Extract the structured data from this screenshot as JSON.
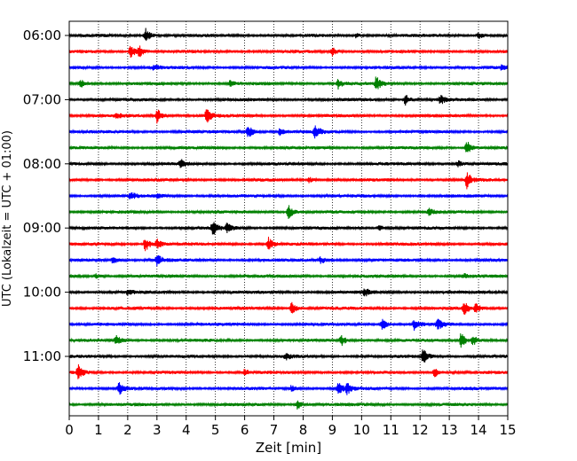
{
  "chart_data": {
    "type": "line",
    "xlabel": "Zeit  [min]",
    "ylabel": "UTC (Lokalzeit = UTC + 01:00)",
    "xlim": [
      0,
      15
    ],
    "x_ticks": [
      0,
      1,
      2,
      3,
      4,
      5,
      6,
      7,
      8,
      9,
      10,
      11,
      12,
      13,
      14,
      15
    ],
    "y_tick_labels": [
      "06:00",
      "07:00",
      "08:00",
      "09:00",
      "10:00",
      "11:00"
    ],
    "trace_interval_min": 15,
    "grid": {
      "vertical": true,
      "style": "dotted"
    },
    "colors": [
      "#000000",
      "#ff0000",
      "#0000ff",
      "#008000"
    ],
    "series": [
      {
        "start": "06:00",
        "color": "#000000",
        "events": [
          {
            "t": 2.6,
            "amp": 1.0
          },
          {
            "t": 9.8,
            "amp": 0.35
          },
          {
            "t": 14.0,
            "amp": 0.4
          }
        ]
      },
      {
        "start": "06:15",
        "color": "#ff0000",
        "events": [
          {
            "t": 2.1,
            "amp": 1.0
          },
          {
            "t": 2.4,
            "amp": 0.6
          },
          {
            "t": 9.0,
            "amp": 0.5
          }
        ]
      },
      {
        "start": "06:30",
        "color": "#0000ff",
        "events": [
          {
            "t": 2.9,
            "amp": 0.35
          },
          {
            "t": 14.8,
            "amp": 0.35
          }
        ]
      },
      {
        "start": "06:45",
        "color": "#008000",
        "events": [
          {
            "t": 0.4,
            "amp": 0.45
          },
          {
            "t": 5.5,
            "amp": 0.35
          },
          {
            "t": 9.2,
            "amp": 0.6
          },
          {
            "t": 10.5,
            "amp": 0.9
          }
        ]
      },
      {
        "start": "07:00",
        "color": "#000000",
        "events": [
          {
            "t": 11.5,
            "amp": 0.7
          },
          {
            "t": 12.7,
            "amp": 0.6
          }
        ]
      },
      {
        "start": "07:15",
        "color": "#ff0000",
        "events": [
          {
            "t": 1.6,
            "amp": 0.35
          },
          {
            "t": 3.0,
            "amp": 1.0
          },
          {
            "t": 4.7,
            "amp": 0.9
          }
        ]
      },
      {
        "start": "07:30",
        "color": "#0000ff",
        "events": [
          {
            "t": 6.1,
            "amp": 1.0
          },
          {
            "t": 7.2,
            "amp": 0.4
          },
          {
            "t": 8.4,
            "amp": 0.9
          }
        ]
      },
      {
        "start": "07:45",
        "color": "#008000",
        "events": [
          {
            "t": 13.6,
            "amp": 0.9
          }
        ]
      },
      {
        "start": "08:00",
        "color": "#000000",
        "events": [
          {
            "t": 3.8,
            "amp": 0.6
          },
          {
            "t": 13.3,
            "amp": 0.4
          }
        ]
      },
      {
        "start": "08:15",
        "color": "#ff0000",
        "events": [
          {
            "t": 8.2,
            "amp": 0.35
          },
          {
            "t": 13.6,
            "amp": 1.0
          }
        ]
      },
      {
        "start": "08:30",
        "color": "#0000ff",
        "events": [
          {
            "t": 2.1,
            "amp": 0.45
          },
          {
            "t": 3.0,
            "amp": 0.3
          }
        ]
      },
      {
        "start": "08:45",
        "color": "#008000",
        "events": [
          {
            "t": 7.5,
            "amp": 0.9
          },
          {
            "t": 12.3,
            "amp": 0.4
          }
        ]
      },
      {
        "start": "09:00",
        "color": "#000000",
        "events": [
          {
            "t": 4.9,
            "amp": 1.0
          },
          {
            "t": 5.4,
            "amp": 0.6
          },
          {
            "t": 10.6,
            "amp": 0.35
          }
        ]
      },
      {
        "start": "09:15",
        "color": "#ff0000",
        "events": [
          {
            "t": 2.6,
            "amp": 1.0
          },
          {
            "t": 3.0,
            "amp": 0.6
          },
          {
            "t": 6.8,
            "amp": 0.9
          }
        ]
      },
      {
        "start": "09:30",
        "color": "#0000ff",
        "events": [
          {
            "t": 1.5,
            "amp": 0.5
          },
          {
            "t": 3.0,
            "amp": 0.8
          },
          {
            "t": 8.6,
            "amp": 0.5
          }
        ]
      },
      {
        "start": "09:45",
        "color": "#008000",
        "events": [
          {
            "t": 0.9,
            "amp": 0.3
          },
          {
            "t": 13.5,
            "amp": 0.3
          }
        ]
      },
      {
        "start": "10:00",
        "color": "#000000",
        "events": [
          {
            "t": 2.0,
            "amp": 0.35
          },
          {
            "t": 10.1,
            "amp": 0.5
          }
        ]
      },
      {
        "start": "10:15",
        "color": "#ff0000",
        "events": [
          {
            "t": 7.6,
            "amp": 1.0
          },
          {
            "t": 13.5,
            "amp": 0.9
          },
          {
            "t": 13.9,
            "amp": 0.6
          }
        ]
      },
      {
        "start": "10:30",
        "color": "#0000ff",
        "events": [
          {
            "t": 10.7,
            "amp": 0.8
          },
          {
            "t": 11.8,
            "amp": 0.7
          },
          {
            "t": 12.6,
            "amp": 0.7
          }
        ]
      },
      {
        "start": "10:45",
        "color": "#008000",
        "events": [
          {
            "t": 1.6,
            "amp": 0.7
          },
          {
            "t": 9.3,
            "amp": 0.7
          },
          {
            "t": 13.4,
            "amp": 1.0
          },
          {
            "t": 13.8,
            "amp": 0.7
          }
        ]
      },
      {
        "start": "11:00",
        "color": "#000000",
        "events": [
          {
            "t": 7.4,
            "amp": 0.4
          },
          {
            "t": 12.1,
            "amp": 1.0
          }
        ]
      },
      {
        "start": "11:15",
        "color": "#ff0000",
        "events": [
          {
            "t": 0.3,
            "amp": 1.0
          },
          {
            "t": 6.0,
            "amp": 0.4
          },
          {
            "t": 12.5,
            "amp": 0.6
          }
        ]
      },
      {
        "start": "11:30",
        "color": "#0000ff",
        "events": [
          {
            "t": 1.7,
            "amp": 0.9
          },
          {
            "t": 7.6,
            "amp": 0.4
          },
          {
            "t": 9.2,
            "amp": 0.8
          },
          {
            "t": 9.5,
            "amp": 0.7
          }
        ]
      },
      {
        "start": "11:45",
        "color": "#008000",
        "events": [
          {
            "t": 7.8,
            "amp": 0.6
          }
        ]
      }
    ]
  }
}
